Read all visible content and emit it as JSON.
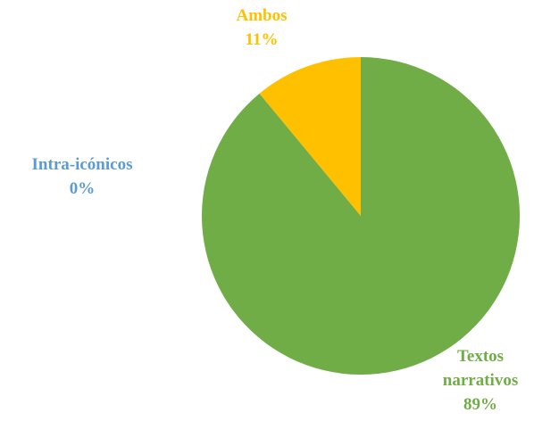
{
  "chart_data": {
    "type": "pie",
    "categories": [
      "Textos narrativos",
      "Intra-icónicos",
      "Ambos"
    ],
    "values": [
      89,
      0,
      11
    ],
    "value_labels": [
      "89%",
      "0%",
      "11%"
    ],
    "colors": [
      "#70ad47",
      "#5b9bd5",
      "#ffc000"
    ]
  }
}
